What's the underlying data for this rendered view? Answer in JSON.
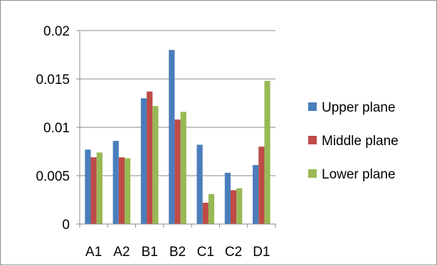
{
  "chart_data": {
    "type": "bar",
    "title": "",
    "xlabel": "",
    "ylabel": "",
    "categories": [
      "A1",
      "A2",
      "B1",
      "B2",
      "C1",
      "C2",
      "D1"
    ],
    "series": [
      {
        "name": "Upper plane",
        "color": "#4a7ebb",
        "values": [
          0.0077,
          0.0086,
          0.013,
          0.018,
          0.0082,
          0.0053,
          0.0061
        ]
      },
      {
        "name": "Middle plane",
        "color": "#be4b48",
        "values": [
          0.0069,
          0.0069,
          0.0137,
          0.0108,
          0.0022,
          0.0035,
          0.008
        ]
      },
      {
        "name": "Lower plane",
        "color": "#98b954",
        "values": [
          0.0074,
          0.0068,
          0.0122,
          0.0116,
          0.0031,
          0.0037,
          0.0148
        ]
      }
    ],
    "ylim": [
      0,
      0.02
    ],
    "yticks": [
      0,
      0.005,
      0.01,
      0.015,
      0.02
    ],
    "ytick_labels": [
      "0",
      "0.005",
      "0.01",
      "0.015",
      "0.02"
    ],
    "grid": "horizontal",
    "legend_position": "right"
  }
}
